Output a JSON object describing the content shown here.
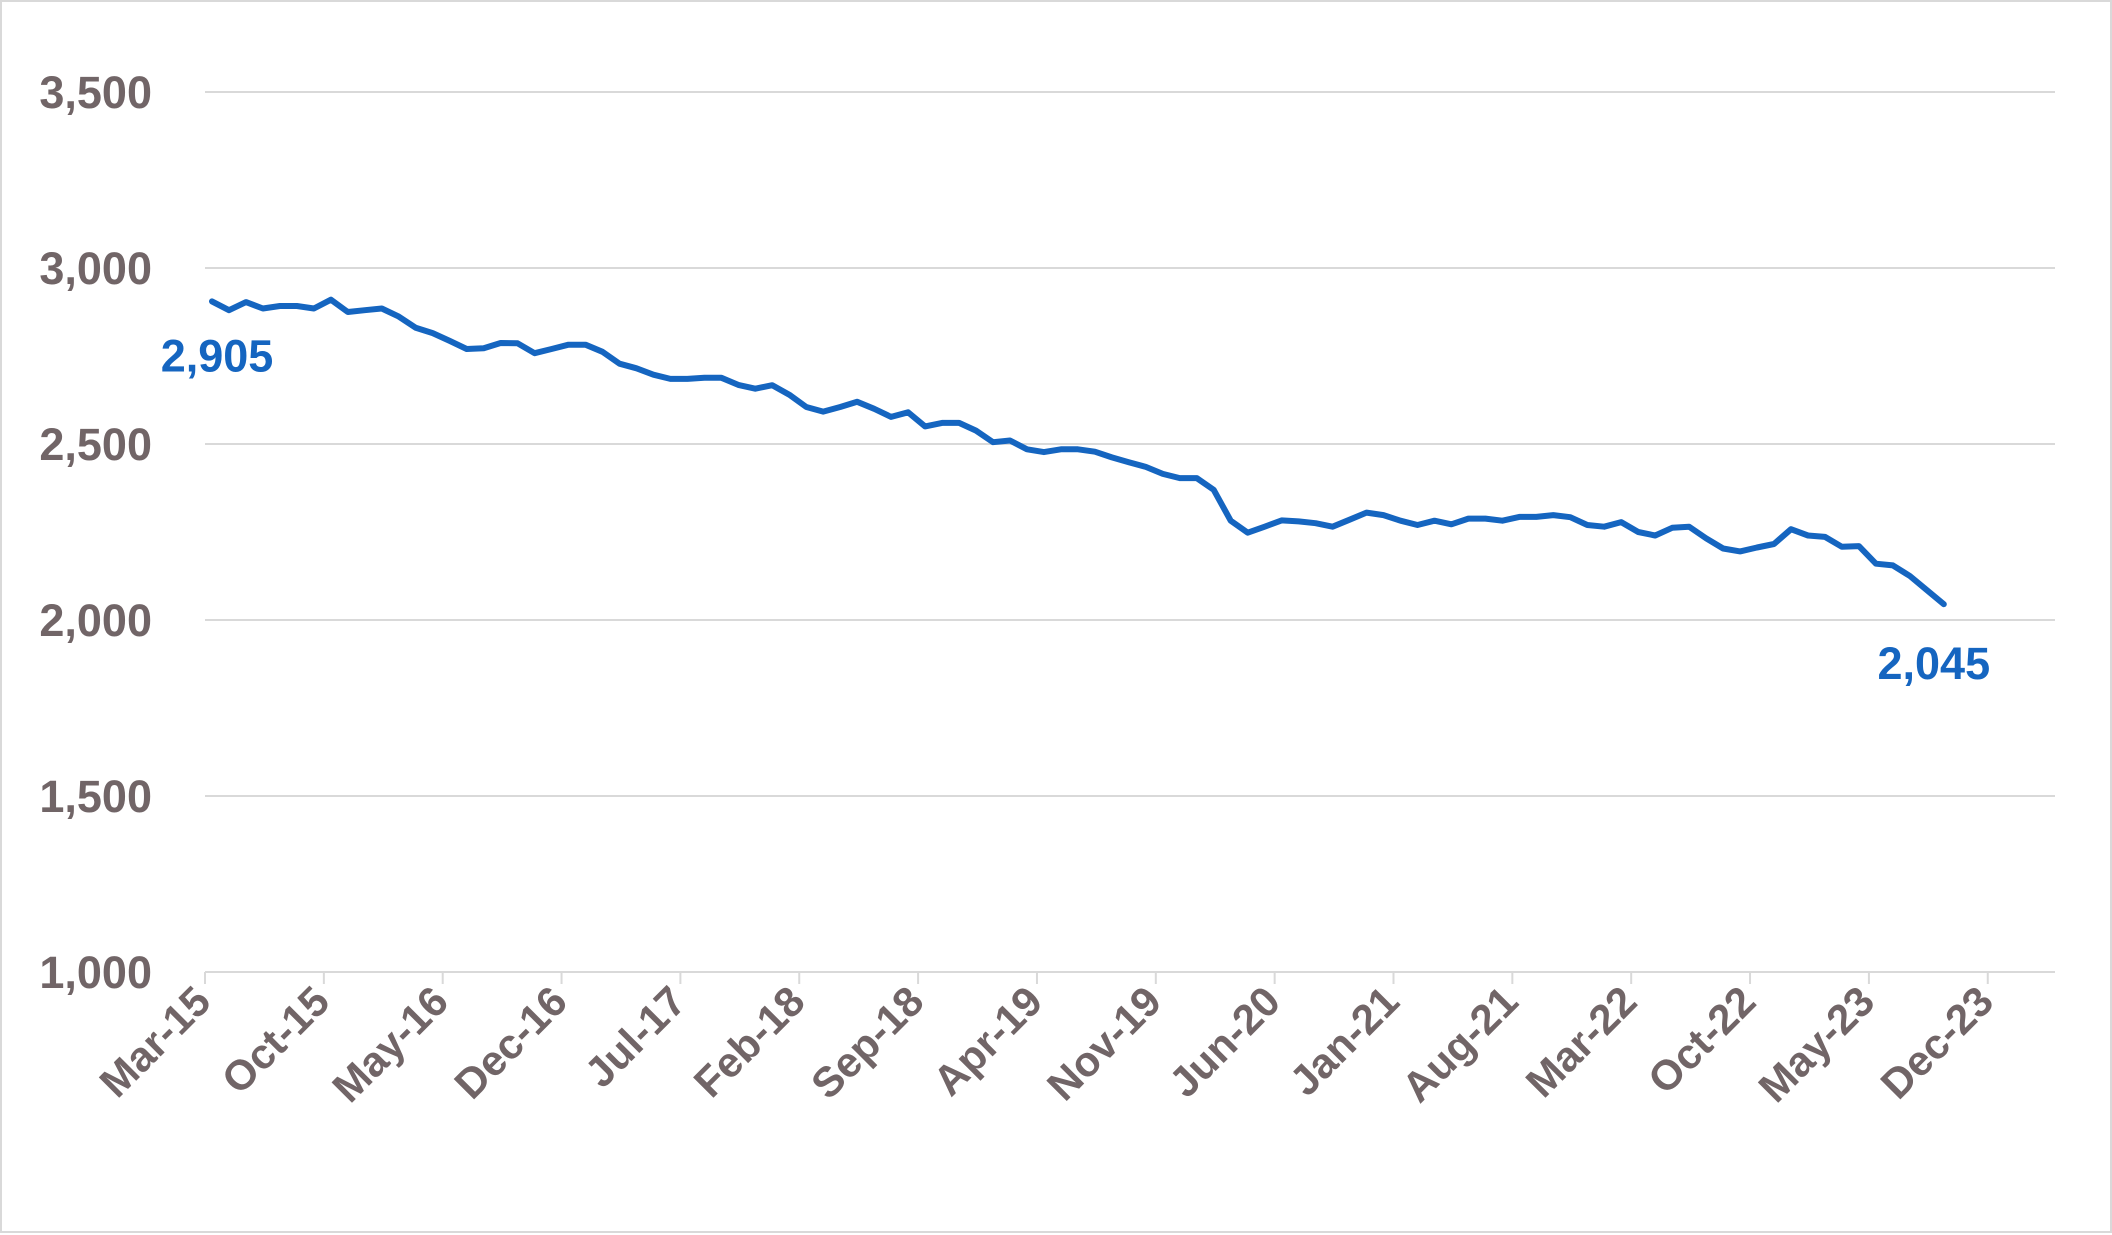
{
  "chart_data": {
    "type": "line",
    "title": "",
    "xlabel": "",
    "ylabel": "",
    "ylim": [
      1000,
      3500
    ],
    "yticks": [
      "1,000",
      "1,500",
      "2,000",
      "2,500",
      "3,000",
      "3,500"
    ],
    "ytick_values": [
      1000,
      1500,
      2000,
      2500,
      3000,
      3500
    ],
    "xticks": [
      "Mar-15",
      "Oct-15",
      "May-16",
      "Dec-16",
      "Jul-17",
      "Feb-18",
      "Sep-18",
      "Apr-19",
      "Nov-19",
      "Jun-20",
      "Jan-21",
      "Aug-21",
      "Mar-22",
      "Oct-22",
      "May-23",
      "Dec-23"
    ],
    "grid": true,
    "legend": "none",
    "line_color": "#1565C0",
    "axis_text_color": "#716567",
    "start_label": "2,905",
    "end_label": "2,045",
    "series": [
      {
        "values": [
          2905,
          2880,
          2903,
          2885,
          2892,
          2892,
          2885,
          2910,
          2875,
          2880,
          2885,
          2862,
          2830,
          2815,
          2793,
          2770,
          2772,
          2787,
          2786,
          2758,
          2770,
          2782,
          2782,
          2762,
          2728,
          2715,
          2697,
          2685,
          2685,
          2688,
          2688,
          2668,
          2657,
          2667,
          2640,
          2605,
          2592,
          2605,
          2620,
          2600,
          2577,
          2590,
          2550,
          2560,
          2560,
          2538,
          2505,
          2510,
          2485,
          2477,
          2485,
          2485,
          2478,
          2462,
          2448,
          2435,
          2415,
          2403,
          2403,
          2370,
          2282,
          2248,
          2265,
          2283,
          2280,
          2275,
          2265,
          2285,
          2305,
          2298,
          2282,
          2270,
          2282,
          2272,
          2288,
          2288,
          2282,
          2293,
          2293,
          2298,
          2292,
          2270,
          2265,
          2278,
          2250,
          2240,
          2262,
          2265,
          2232,
          2203,
          2195,
          2206,
          2216,
          2258,
          2240,
          2236,
          2208,
          2210,
          2160,
          2155,
          2125,
          2085,
          2045
        ]
      }
    ]
  }
}
